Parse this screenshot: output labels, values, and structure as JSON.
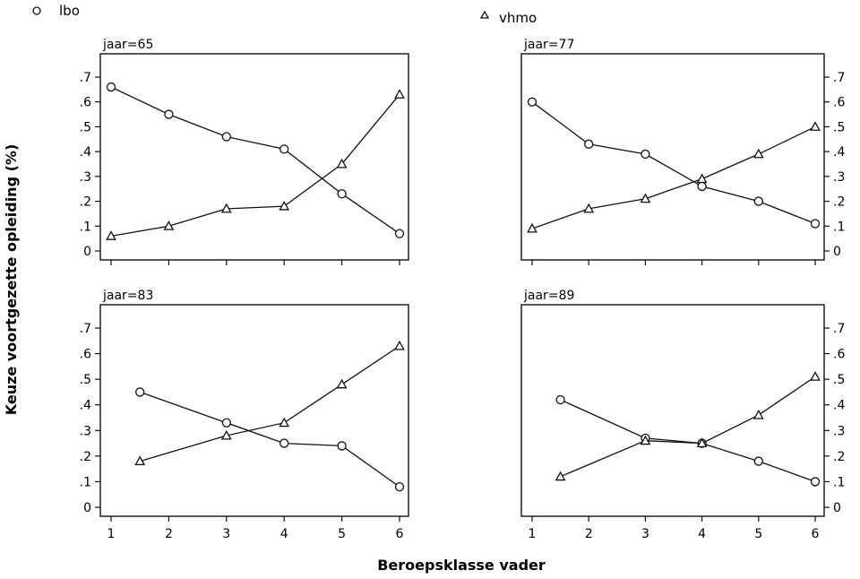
{
  "chart_data": {
    "type": "line",
    "xlabel": "Beroepsklasse vader",
    "ylabel": "Keuze voortgezette opleiding (%)",
    "legend": [
      {
        "name": "lbo",
        "marker": "circle"
      },
      {
        "name": "vhmo",
        "marker": "triangle"
      }
    ],
    "xlim": [
      1,
      6
    ],
    "ylim": [
      0,
      0.7
    ],
    "x_ticks": [
      "1",
      "2",
      "3",
      "4",
      "5",
      "6"
    ],
    "y_ticks": [
      {
        "v": 0.0,
        "t": "0"
      },
      {
        "v": 0.1,
        "t": ".1"
      },
      {
        "v": 0.2,
        "t": ".2"
      },
      {
        "v": 0.3,
        "t": ".3"
      },
      {
        "v": 0.4,
        "t": ".4"
      },
      {
        "v": 0.5,
        "t": ".5"
      },
      {
        "v": 0.6,
        "t": ".6"
      },
      {
        "v": 0.7,
        "t": ".7"
      }
    ],
    "panels": [
      {
        "title": "jaar=65",
        "series": [
          {
            "name": "lbo",
            "x": [
              1,
              2,
              3,
              4,
              5,
              6
            ],
            "y": [
              0.66,
              0.55,
              0.46,
              0.41,
              0.23,
              0.07
            ]
          },
          {
            "name": "vhmo",
            "x": [
              1,
              2,
              3,
              4,
              5,
              6
            ],
            "y": [
              0.06,
              0.1,
              0.17,
              0.18,
              0.35,
              0.63
            ]
          }
        ]
      },
      {
        "title": "jaar=77",
        "series": [
          {
            "name": "lbo",
            "x": [
              1,
              2,
              3,
              4,
              5,
              6
            ],
            "y": [
              0.6,
              0.43,
              0.39,
              0.26,
              0.2,
              0.11
            ]
          },
          {
            "name": "vhmo",
            "x": [
              1,
              2,
              3,
              4,
              5,
              6
            ],
            "y": [
              0.09,
              0.17,
              0.21,
              0.29,
              0.39,
              0.5
            ]
          }
        ]
      },
      {
        "title": "jaar=83",
        "series": [
          {
            "name": "lbo",
            "x": [
              1.5,
              3,
              4,
              5,
              6
            ],
            "y": [
              0.45,
              0.33,
              0.25,
              0.24,
              0.08
            ]
          },
          {
            "name": "vhmo",
            "x": [
              1.5,
              3,
              4,
              5,
              6
            ],
            "y": [
              0.18,
              0.28,
              0.33,
              0.48,
              0.63
            ]
          }
        ]
      },
      {
        "title": "jaar=89",
        "series": [
          {
            "name": "lbo",
            "x": [
              1.5,
              3,
              4,
              5,
              6
            ],
            "y": [
              0.42,
              0.27,
              0.25,
              0.18,
              0.1
            ]
          },
          {
            "name": "vhmo",
            "x": [
              1.5,
              3,
              4,
              5,
              6
            ],
            "y": [
              0.12,
              0.26,
              0.25,
              0.36,
              0.51
            ]
          }
        ]
      }
    ]
  }
}
